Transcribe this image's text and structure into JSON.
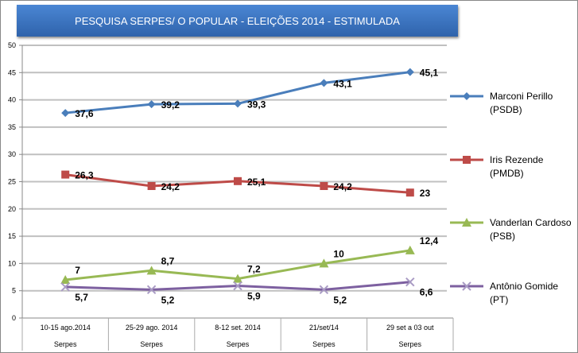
{
  "chart_data": {
    "type": "line",
    "title": "PESQUISA SERPES/ O POPULAR - ELEIÇÕES 2014 - ESTIMULADA",
    "categories": [
      "10-15 ago.2014",
      "25-29 ago. 2014",
      "8-12 set. 2014",
      "21/set/14",
      "29 set a 03 out"
    ],
    "category_group": "Serpes",
    "ylim": [
      0,
      50
    ],
    "yticks": [
      0,
      5,
      10,
      15,
      20,
      25,
      30,
      35,
      40,
      45,
      50
    ],
    "grid": true,
    "legend": "right",
    "series": [
      {
        "name": "Marconi Perillo (PSDB)",
        "color": "#4a7ebb",
        "marker": "diamond",
        "values": [
          37.6,
          39.2,
          39.3,
          43.1,
          45.1
        ],
        "labels": [
          "37,6",
          "39,2",
          "39,3",
          "43,1",
          "45,1"
        ]
      },
      {
        "name": "Iris Rezende (PMDB)",
        "color": "#be4b48",
        "marker": "square",
        "values": [
          26.3,
          24.2,
          25.1,
          24.2,
          23
        ],
        "labels": [
          "26,3",
          "24,2",
          "25,1",
          "24,2",
          "23"
        ]
      },
      {
        "name": "Vanderlan Cardoso (PSB)",
        "color": "#98b954",
        "marker": "triangle",
        "values": [
          7,
          8.7,
          7.2,
          10,
          12.4
        ],
        "labels": [
          "7",
          "8,7",
          "7,2",
          "10",
          "12,4"
        ]
      },
      {
        "name": "Antônio Gomide (PT)",
        "color": "#7d60a0",
        "marker": "x",
        "values": [
          5.7,
          5.2,
          5.9,
          5.2,
          6.6
        ],
        "labels": [
          "5,7",
          "5,2",
          "5,9",
          "5,2",
          "6,6"
        ]
      }
    ]
  }
}
